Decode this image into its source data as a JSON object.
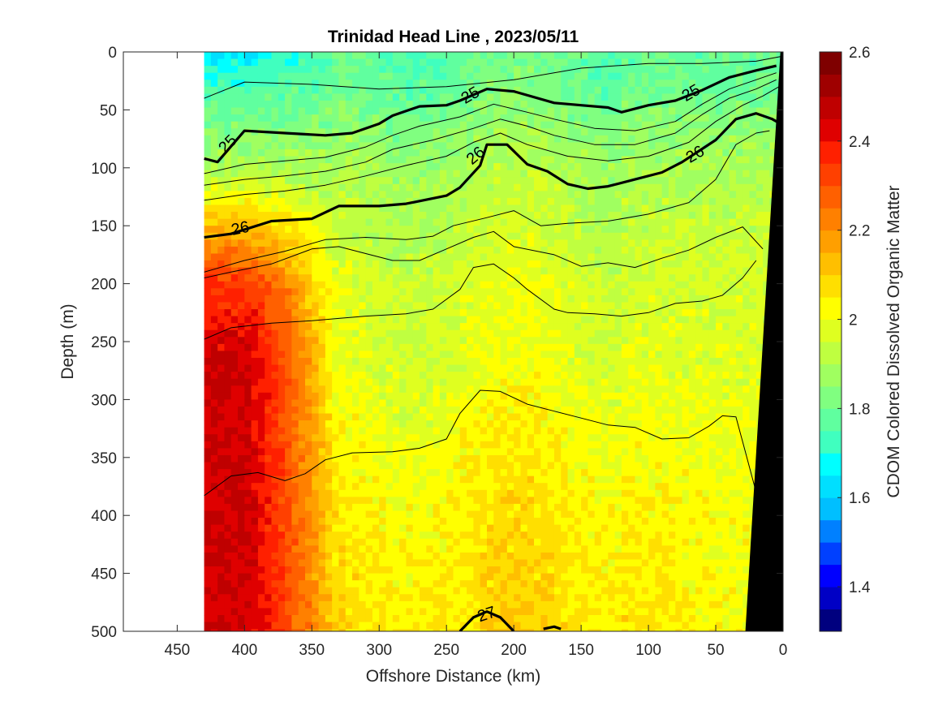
{
  "chart_data": {
    "type": "heatmap",
    "title": "Trinidad Head Line , 2023/05/11",
    "xlabel": "Offshore Distance (km)",
    "ylabel": "Depth (m)",
    "colorbar_label": "CDOM Colored Dissolved Organic Matter",
    "xlim": [
      490,
      0
    ],
    "ylim": [
      0,
      500
    ],
    "x_reversed": true,
    "y_reversed": true,
    "x_ticks": [
      450,
      400,
      350,
      300,
      250,
      200,
      150,
      100,
      50,
      0
    ],
    "y_ticks": [
      0,
      50,
      100,
      150,
      200,
      250,
      300,
      350,
      400,
      450,
      500
    ],
    "clim": [
      1.3,
      2.6
    ],
    "colorbar_ticks": [
      "1.4",
      "1.6",
      "1.8",
      "2",
      "2.2",
      "2.4",
      "2.6"
    ],
    "colorbar_tick_values": [
      1.4,
      1.6,
      1.8,
      2.0,
      2.2,
      2.4,
      2.6
    ],
    "colormap": [
      "#00007f",
      "#0000c5",
      "#0000ff",
      "#0040ff",
      "#0080ff",
      "#00bfff",
      "#00dfff",
      "#00ffff",
      "#40ffbf",
      "#60ff9f",
      "#80ff80",
      "#a0ff60",
      "#bfff40",
      "#dfff20",
      "#ffff00",
      "#ffdf00",
      "#ffbf00",
      "#ff9f00",
      "#ff8000",
      "#ff6000",
      "#ff4000",
      "#ff2000",
      "#df0000",
      "#bf0000",
      "#9f0000",
      "#7f0000"
    ],
    "data_x_range": [
      430,
      0
    ],
    "field_profile": {
      "note_free_values": true,
      "depth": [
        0,
        30,
        60,
        100,
        150,
        200,
        260,
        330,
        400,
        500
      ],
      "offshore_values": [
        1.65,
        1.75,
        1.82,
        1.9,
        2.15,
        2.35,
        2.45,
        2.45,
        2.45,
        2.45
      ],
      "mid_values": [
        1.78,
        1.8,
        1.84,
        1.9,
        1.93,
        1.97,
        1.98,
        2.02,
        2.05,
        2.07
      ],
      "nearshore_values": [
        1.78,
        1.8,
        1.85,
        1.9,
        1.94,
        1.96,
        1.97,
        1.98,
        2.0,
        2.0
      ]
    },
    "contours": [
      {
        "level": "",
        "bold": false,
        "points": [
          [
            430,
            40
          ],
          [
            400,
            26
          ],
          [
            350,
            28
          ],
          [
            300,
            32
          ],
          [
            250,
            30
          ],
          [
            200,
            24
          ],
          [
            150,
            14
          ],
          [
            100,
            10
          ],
          [
            60,
            10
          ],
          [
            20,
            8
          ],
          [
            2,
            4
          ]
        ]
      },
      {
        "level": "25",
        "bold": true,
        "points": [
          [
            430,
            92
          ],
          [
            420,
            95
          ],
          [
            400,
            68
          ],
          [
            370,
            70
          ],
          [
            340,
            72
          ],
          [
            320,
            70
          ],
          [
            300,
            62
          ],
          [
            290,
            55
          ],
          [
            270,
            47
          ],
          [
            250,
            46
          ],
          [
            240,
            42
          ],
          [
            220,
            32
          ],
          [
            200,
            34
          ],
          [
            170,
            44
          ],
          [
            150,
            46
          ],
          [
            130,
            48
          ],
          [
            120,
            52
          ],
          [
            100,
            46
          ],
          [
            80,
            42
          ],
          [
            60,
            33
          ],
          [
            40,
            22
          ],
          [
            20,
            16
          ],
          [
            5,
            12
          ]
        ]
      },
      {
        "level": "",
        "bold": false,
        "points": [
          [
            430,
            105
          ],
          [
            400,
            97
          ],
          [
            370,
            94
          ],
          [
            340,
            91
          ],
          [
            310,
            82
          ],
          [
            290,
            72
          ],
          [
            270,
            64
          ],
          [
            240,
            56
          ],
          [
            215,
            45
          ],
          [
            190,
            52
          ],
          [
            170,
            58
          ],
          [
            140,
            66
          ],
          [
            110,
            68
          ],
          [
            80,
            60
          ],
          [
            60,
            45
          ],
          [
            40,
            32
          ],
          [
            20,
            24
          ],
          [
            5,
            18
          ]
        ]
      },
      {
        "level": "",
        "bold": false,
        "points": [
          [
            430,
            115
          ],
          [
            400,
            110
          ],
          [
            370,
            107
          ],
          [
            340,
            103
          ],
          [
            310,
            95
          ],
          [
            290,
            84
          ],
          [
            260,
            76
          ],
          [
            230,
            66
          ],
          [
            210,
            58
          ],
          [
            190,
            64
          ],
          [
            170,
            72
          ],
          [
            140,
            80
          ],
          [
            110,
            80
          ],
          [
            80,
            70
          ],
          [
            60,
            54
          ],
          [
            40,
            40
          ],
          [
            20,
            32
          ],
          [
            5,
            24
          ]
        ]
      },
      {
        "level": "",
        "bold": false,
        "points": [
          [
            430,
            128
          ],
          [
            400,
            123
          ],
          [
            370,
            120
          ],
          [
            340,
            115
          ],
          [
            310,
            107
          ],
          [
            280,
            98
          ],
          [
            250,
            90
          ],
          [
            230,
            78
          ],
          [
            210,
            70
          ],
          [
            190,
            80
          ],
          [
            160,
            90
          ],
          [
            130,
            94
          ],
          [
            100,
            90
          ],
          [
            70,
            78
          ],
          [
            50,
            60
          ],
          [
            30,
            46
          ],
          [
            15,
            38
          ],
          [
            3,
            30
          ]
        ]
      },
      {
        "level": "26",
        "bold": true,
        "points": [
          [
            430,
            160
          ],
          [
            410,
            157
          ],
          [
            380,
            146
          ],
          [
            350,
            144
          ],
          [
            330,
            133
          ],
          [
            300,
            133
          ],
          [
            280,
            131
          ],
          [
            250,
            124
          ],
          [
            240,
            117
          ],
          [
            225,
            98
          ],
          [
            220,
            80
          ],
          [
            205,
            80
          ],
          [
            190,
            97
          ],
          [
            175,
            103
          ],
          [
            160,
            114
          ],
          [
            145,
            118
          ],
          [
            130,
            116
          ],
          [
            110,
            110
          ],
          [
            90,
            104
          ],
          [
            75,
            95
          ],
          [
            50,
            76
          ],
          [
            35,
            58
          ],
          [
            20,
            53
          ],
          [
            8,
            58
          ],
          [
            2,
            62
          ]
        ]
      },
      {
        "level": "",
        "bold": false,
        "points": [
          [
            430,
            190
          ],
          [
            400,
            180
          ],
          [
            370,
            172
          ],
          [
            340,
            162
          ],
          [
            310,
            160
          ],
          [
            280,
            162
          ],
          [
            260,
            159
          ],
          [
            245,
            150
          ],
          [
            220,
            143
          ],
          [
            200,
            137
          ],
          [
            180,
            150
          ],
          [
            160,
            148
          ],
          [
            130,
            146
          ],
          [
            100,
            140
          ],
          [
            70,
            130
          ],
          [
            50,
            110
          ],
          [
            35,
            80
          ],
          [
            20,
            70
          ],
          [
            10,
            68
          ]
        ]
      },
      {
        "level": "",
        "bold": false,
        "points": [
          [
            430,
            195
          ],
          [
            410,
            190
          ],
          [
            380,
            183
          ],
          [
            350,
            170
          ],
          [
            330,
            168
          ],
          [
            310,
            174
          ],
          [
            290,
            180
          ],
          [
            270,
            180
          ],
          [
            250,
            170
          ],
          [
            230,
            160
          ],
          [
            215,
            155
          ],
          [
            200,
            168
          ],
          [
            170,
            175
          ],
          [
            150,
            185
          ],
          [
            130,
            182
          ],
          [
            110,
            186
          ],
          [
            90,
            178
          ],
          [
            70,
            171
          ],
          [
            50,
            160
          ],
          [
            30,
            151
          ],
          [
            15,
            170
          ]
        ]
      },
      {
        "level": "",
        "bold": false,
        "points": [
          [
            430,
            248
          ],
          [
            410,
            238
          ],
          [
            380,
            234
          ],
          [
            350,
            232
          ],
          [
            330,
            230
          ],
          [
            310,
            228
          ],
          [
            280,
            226
          ],
          [
            260,
            222
          ],
          [
            240,
            205
          ],
          [
            230,
            186
          ],
          [
            215,
            183
          ],
          [
            200,
            195
          ],
          [
            190,
            205
          ],
          [
            170,
            222
          ],
          [
            160,
            225
          ],
          [
            140,
            226
          ],
          [
            120,
            228
          ],
          [
            100,
            225
          ],
          [
            80,
            217
          ],
          [
            60,
            215
          ],
          [
            45,
            210
          ],
          [
            30,
            195
          ],
          [
            20,
            180
          ]
        ]
      },
      {
        "level": "",
        "bold": false,
        "points": [
          [
            430,
            383
          ],
          [
            410,
            366
          ],
          [
            390,
            363
          ],
          [
            370,
            370
          ],
          [
            355,
            364
          ],
          [
            340,
            352
          ],
          [
            320,
            346
          ],
          [
            290,
            345
          ],
          [
            270,
            342
          ],
          [
            250,
            334
          ],
          [
            240,
            312
          ],
          [
            225,
            292
          ],
          [
            210,
            293
          ],
          [
            190,
            304
          ],
          [
            170,
            310
          ],
          [
            150,
            316
          ],
          [
            130,
            322
          ],
          [
            110,
            324
          ],
          [
            90,
            334
          ],
          [
            70,
            333
          ],
          [
            55,
            323
          ],
          [
            45,
            314
          ],
          [
            35,
            315
          ],
          [
            28,
            345
          ],
          [
            20,
            380
          ]
        ]
      },
      {
        "level": "27",
        "bold": true,
        "points": [
          [
            240,
            500
          ],
          [
            230,
            488
          ],
          [
            220,
            483
          ],
          [
            210,
            488
          ],
          [
            200,
            500
          ]
        ]
      },
      {
        "level": "",
        "bold": true,
        "points": [
          [
            178,
            498
          ],
          [
            170,
            496
          ],
          [
            165,
            498
          ]
        ]
      }
    ],
    "contour_labels": [
      {
        "text": "25",
        "x": 412,
        "depth": 80,
        "angle": -45
      },
      {
        "text": "25",
        "x": 232,
        "depth": 38,
        "angle": -30
      },
      {
        "text": "25",
        "x": 68,
        "depth": 36,
        "angle": -30
      },
      {
        "text": "26",
        "x": 403,
        "depth": 153,
        "angle": -12
      },
      {
        "text": "26",
        "x": 228,
        "depth": 90,
        "angle": -40
      },
      {
        "text": "26",
        "x": 65,
        "depth": 89,
        "angle": -30
      },
      {
        "text": "27",
        "x": 220,
        "depth": 486,
        "angle": -18
      }
    ],
    "bathymetry": [
      [
        0,
        0
      ],
      [
        2,
        0
      ],
      [
        28,
        500
      ],
      [
        0,
        500
      ]
    ]
  }
}
